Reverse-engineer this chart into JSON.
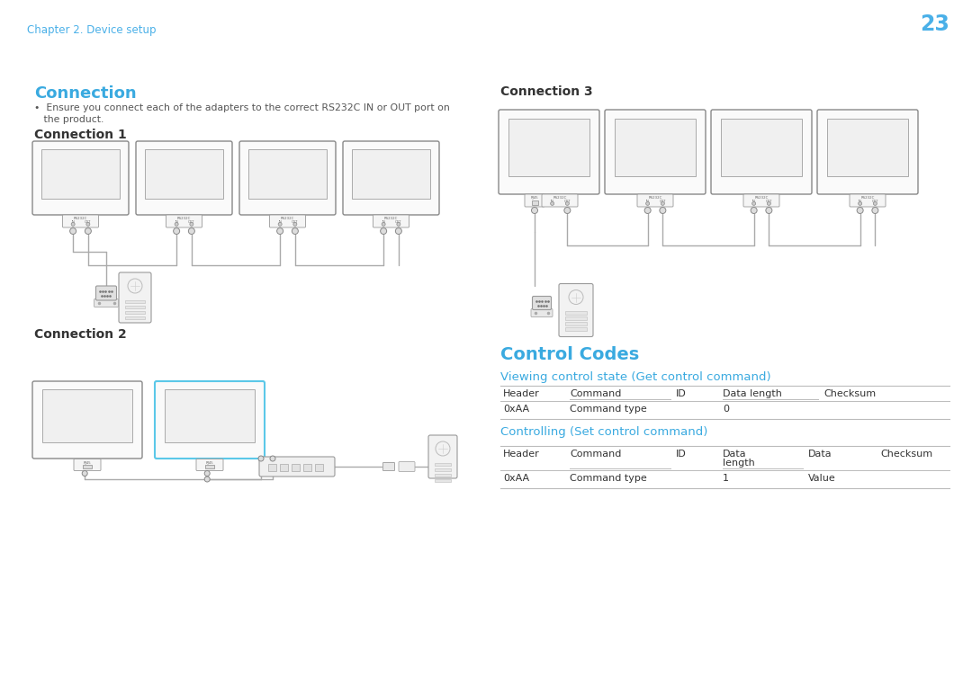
{
  "bg_header_color": "#ddeef8",
  "bg_main_color": "#ffffff",
  "header_text_color": "#4ab0e8",
  "page_number": "23",
  "chapter_text": "Chapter 2. Device setup",
  "section_connection_title": "Connection",
  "bullet_line1": "•  Ensure you connect each of the adapters to the correct RS232C IN or OUT port on",
  "bullet_line2": "   the product.",
  "conn1_title": "Connection 1",
  "conn2_title": "Connection 2",
  "conn3_title": "Connection 3",
  "control_codes_title": "Control Codes",
  "viewing_title": "Viewing control state (Get control command)",
  "controlling_title": "Controlling (Set control command)",
  "get_table_headers": [
    "Header",
    "Command",
    "ID",
    "Data length",
    "Checksum"
  ],
  "get_table_row": [
    "0xAA",
    "Command type",
    "",
    "0",
    ""
  ],
  "set_table_headers": [
    "Header",
    "Command",
    "ID",
    "Data\nlength",
    "Data",
    "Checksum"
  ],
  "set_table_row": [
    "0xAA",
    "Command type",
    "",
    "1",
    "Value",
    ""
  ],
  "body_text_color": "#555555",
  "dark_text_color": "#333333",
  "table_line_color": "#bbbbbb",
  "section_title_color": "#3aaae0",
  "cable_color": "#aaaaaa",
  "monitor_edge_color": "#888888",
  "monitor_face_color": "#fafafa",
  "screen_face_color": "#f0f0f0",
  "box_edge_color": "#999999",
  "box_face_color": "#f5f5f5"
}
